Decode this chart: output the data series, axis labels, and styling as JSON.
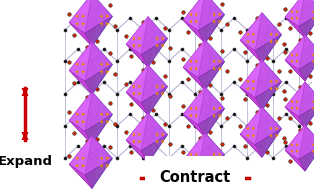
{
  "fig_width": 3.14,
  "fig_height": 1.89,
  "dpi": 100,
  "bg_color": "#ffffff",
  "expand_text": "Expand",
  "contract_text": "Contract",
  "arrow_color": "#cc0000",
  "font_size_expand": 9.5,
  "font_size_contract": 10.5,
  "font_weight": "bold",
  "polyhedra_color_purple": "#cc44ee",
  "polyhedra_color_blue": "#4466cc",
  "bond_color": "#aaaacc",
  "atom_black": "#111111",
  "atom_red": "#dd2200",
  "arrow_orange": "#ee8800"
}
